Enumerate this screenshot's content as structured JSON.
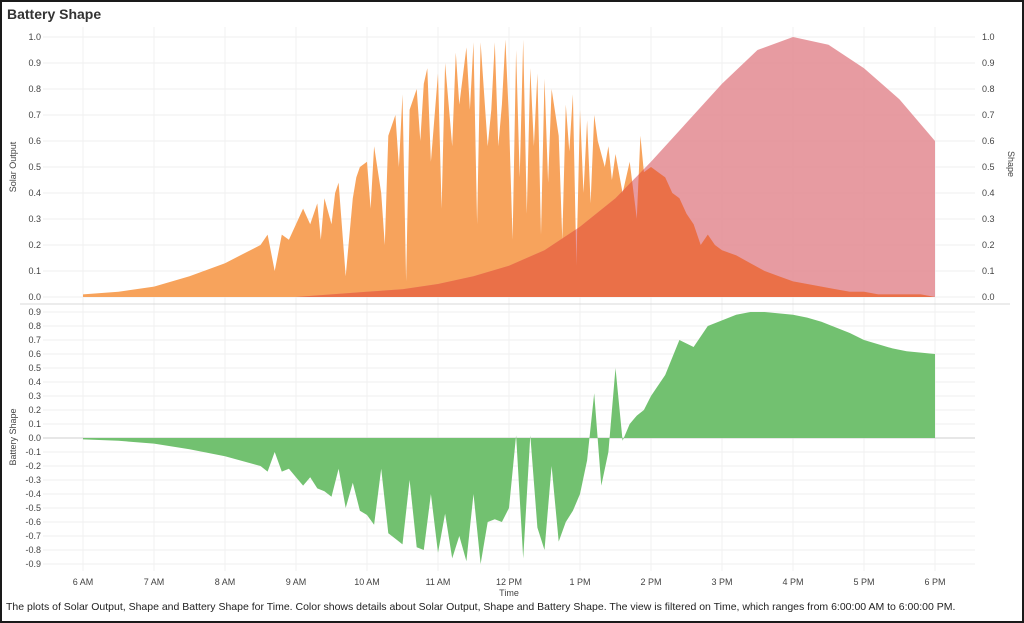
{
  "title": "Battery Shape",
  "caption": "The plots of Solar Output, Shape and Battery Shape for Time.  Color shows details about Solar Output, Shape and Battery Shape. The view is filtered on Time, which ranges from 6:00:00 AM to 6:00:00 PM.",
  "colors": {
    "solar": "#f7a35c",
    "shape": "#e38a91",
    "overlap": "#ea6f45",
    "battery": "#72c170"
  },
  "chart_data": [
    {
      "type": "area",
      "title": "",
      "xlabel": "",
      "ylabel": "Solar Output",
      "y2label": "Shape",
      "xlim": [
        6,
        18
      ],
      "ylim": [
        0,
        1.0
      ],
      "y_ticks": [
        "1.0",
        "0.9",
        "0.8",
        "0.7",
        "0.6",
        "0.5",
        "0.4",
        "0.3",
        "0.2",
        "0.1",
        "0.0"
      ],
      "y2_ticks": [
        "1.0",
        "0.9",
        "0.8",
        "0.7",
        "0.6",
        "0.5",
        "0.4",
        "0.3",
        "0.2",
        "0.1",
        "0.0"
      ],
      "series": [
        {
          "name": "Solar Output",
          "x": [
            6.0,
            6.5,
            7.0,
            7.5,
            8.0,
            8.5,
            8.6,
            8.7,
            8.8,
            8.9,
            9.0,
            9.1,
            9.2,
            9.3,
            9.35,
            9.4,
            9.5,
            9.55,
            9.6,
            9.7,
            9.8,
            9.85,
            9.9,
            10.0,
            10.05,
            10.1,
            10.2,
            10.25,
            10.3,
            10.4,
            10.45,
            10.5,
            10.55,
            10.6,
            10.7,
            10.75,
            10.8,
            10.85,
            10.9,
            11.0,
            11.05,
            11.1,
            11.2,
            11.25,
            11.3,
            11.4,
            11.45,
            11.5,
            11.55,
            11.6,
            11.7,
            11.75,
            11.8,
            11.85,
            11.9,
            11.95,
            12.0,
            12.05,
            12.1,
            12.15,
            12.2,
            12.25,
            12.3,
            12.35,
            12.4,
            12.45,
            12.5,
            12.55,
            12.6,
            12.7,
            12.75,
            12.8,
            12.85,
            12.9,
            12.95,
            13.0,
            13.05,
            13.1,
            13.15,
            13.2,
            13.25,
            13.3,
            13.35,
            13.4,
            13.45,
            13.5,
            13.6,
            13.7,
            13.8,
            13.85,
            13.9,
            14.0,
            14.1,
            14.2,
            14.3,
            14.4,
            14.5,
            14.6,
            14.7,
            14.8,
            14.9,
            15.0,
            15.2,
            15.4,
            15.6,
            15.8,
            16.0,
            16.2,
            16.4,
            16.6,
            16.8,
            17.0,
            17.2,
            17.4,
            17.6,
            17.8,
            18.0
          ],
          "values": [
            0.01,
            0.02,
            0.04,
            0.08,
            0.13,
            0.2,
            0.24,
            0.1,
            0.24,
            0.22,
            0.28,
            0.34,
            0.28,
            0.36,
            0.22,
            0.38,
            0.28,
            0.4,
            0.44,
            0.08,
            0.38,
            0.46,
            0.5,
            0.52,
            0.34,
            0.58,
            0.4,
            0.2,
            0.62,
            0.7,
            0.5,
            0.78,
            0.06,
            0.72,
            0.8,
            0.6,
            0.82,
            0.88,
            0.52,
            0.86,
            0.34,
            0.9,
            0.58,
            0.94,
            0.74,
            0.96,
            0.72,
            0.98,
            0.28,
            0.98,
            0.58,
            0.72,
            0.98,
            0.58,
            0.74,
            0.99,
            0.68,
            0.22,
            0.95,
            0.46,
            0.99,
            0.32,
            0.88,
            0.58,
            0.86,
            0.24,
            0.84,
            0.44,
            0.8,
            0.62,
            0.22,
            0.74,
            0.56,
            0.78,
            0.12,
            0.72,
            0.4,
            0.68,
            0.36,
            0.7,
            0.6,
            0.55,
            0.5,
            0.58,
            0.45,
            0.55,
            0.4,
            0.52,
            0.3,
            0.62,
            0.48,
            0.5,
            0.48,
            0.46,
            0.4,
            0.38,
            0.32,
            0.28,
            0.2,
            0.24,
            0.2,
            0.18,
            0.16,
            0.13,
            0.1,
            0.08,
            0.06,
            0.05,
            0.04,
            0.03,
            0.02,
            0.02,
            0.01,
            0.01,
            0.01,
            0.01,
            0.0
          ]
        },
        {
          "name": "Shape",
          "x": [
            6,
            6.5,
            7,
            7.5,
            8,
            8.5,
            9,
            9.5,
            10,
            10.5,
            11,
            11.5,
            12,
            12.5,
            13,
            13.5,
            14,
            14.5,
            15,
            15.5,
            16,
            16.5,
            17,
            17.5,
            18
          ],
          "values": [
            0.0,
            0.0,
            0.0,
            0.0,
            0.0,
            0.0,
            0.0,
            0.01,
            0.02,
            0.03,
            0.05,
            0.08,
            0.12,
            0.18,
            0.27,
            0.38,
            0.52,
            0.67,
            0.82,
            0.95,
            1.0,
            0.97,
            0.88,
            0.76,
            0.6
          ]
        }
      ]
    },
    {
      "type": "area",
      "title": "",
      "xlabel": "Time",
      "ylabel": "Battery Shape",
      "ylim": [
        -0.9,
        0.9
      ],
      "x_ticks": [
        "6 AM",
        "7 AM",
        "8 AM",
        "9 AM",
        "10 AM",
        "11 AM",
        "12 PM",
        "1 PM",
        "2 PM",
        "3 PM",
        "4 PM",
        "5 PM",
        "6 PM"
      ],
      "y_ticks": [
        "0.9",
        "0.8",
        "0.7",
        "0.6",
        "0.5",
        "0.4",
        "0.3",
        "0.2",
        "0.1",
        "0.0",
        "-0.1",
        "-0.2",
        "-0.3",
        "-0.4",
        "-0.5",
        "-0.6",
        "-0.7",
        "-0.8",
        "-0.9"
      ],
      "series": [
        {
          "name": "Battery Shape",
          "x": [
            6.0,
            6.5,
            7.0,
            7.5,
            8.0,
            8.5,
            8.6,
            8.7,
            8.8,
            8.9,
            9.0,
            9.1,
            9.2,
            9.3,
            9.4,
            9.5,
            9.6,
            9.7,
            9.8,
            9.9,
            10.0,
            10.1,
            10.2,
            10.3,
            10.4,
            10.5,
            10.6,
            10.7,
            10.8,
            10.9,
            11.0,
            11.1,
            11.2,
            11.3,
            11.4,
            11.5,
            11.6,
            11.7,
            11.8,
            11.9,
            12.0,
            12.1,
            12.2,
            12.3,
            12.4,
            12.5,
            12.6,
            12.7,
            12.8,
            12.9,
            13.0,
            13.1,
            13.2,
            13.3,
            13.4,
            13.5,
            13.6,
            13.7,
            13.8,
            13.9,
            14.0,
            14.2,
            14.4,
            14.6,
            14.8,
            15.0,
            15.2,
            15.4,
            15.6,
            15.8,
            16.0,
            16.2,
            16.4,
            16.6,
            16.8,
            17.0,
            17.2,
            17.4,
            17.6,
            17.8,
            18.0
          ],
          "values": [
            -0.01,
            -0.02,
            -0.04,
            -0.08,
            -0.13,
            -0.2,
            -0.24,
            -0.1,
            -0.24,
            -0.22,
            -0.28,
            -0.34,
            -0.28,
            -0.36,
            -0.38,
            -0.42,
            -0.22,
            -0.5,
            -0.32,
            -0.52,
            -0.55,
            -0.62,
            -0.22,
            -0.68,
            -0.72,
            -0.76,
            -0.3,
            -0.78,
            -0.8,
            -0.4,
            -0.82,
            -0.54,
            -0.86,
            -0.7,
            -0.88,
            -0.4,
            -0.9,
            -0.6,
            -0.58,
            -0.6,
            -0.5,
            0.02,
            -0.86,
            0.02,
            -0.64,
            -0.8,
            -0.2,
            -0.74,
            -0.6,
            -0.52,
            -0.4,
            -0.16,
            0.32,
            -0.34,
            -0.1,
            0.5,
            -0.02,
            0.1,
            0.16,
            0.2,
            0.3,
            0.45,
            0.7,
            0.65,
            0.8,
            0.84,
            0.88,
            0.9,
            0.9,
            0.89,
            0.88,
            0.86,
            0.83,
            0.79,
            0.75,
            0.7,
            0.67,
            0.64,
            0.62,
            0.61,
            0.6
          ]
        }
      ]
    }
  ]
}
